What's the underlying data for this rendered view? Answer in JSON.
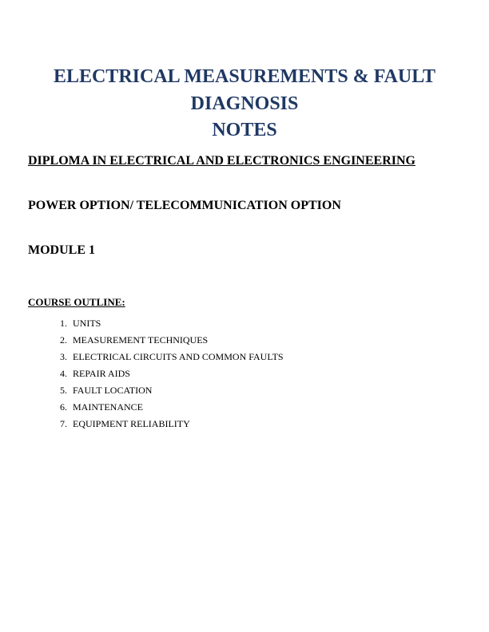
{
  "title_line1": "ELECTRICAL MEASUREMENTS & FAULT DIAGNOSIS",
  "title_line2": "NOTES",
  "subtitle": "DIPLOMA IN ELECTRICAL AND ELECTRONICS ENGINEERING",
  "option": "POWER OPTION/ TELECOMMUNICATION OPTION",
  "module": "MODULE 1",
  "outline_heading": "COURSE OUTLINE:",
  "outline_items": [
    "UNITS",
    "MEASUREMENT TECHNIQUES",
    "ELECTRICAL CIRCUITS AND COMMON FAULTS",
    "REPAIR AIDS",
    "FAULT LOCATION",
    "MAINTENANCE",
    "EQUIPMENT RELIABILITY"
  ],
  "colors": {
    "title_color": "#1f3864",
    "body_text": "#000000",
    "background": "#ffffff"
  },
  "fonts": {
    "title_size": 24,
    "subtitle_size": 16,
    "outline_heading_size": 13,
    "list_size": 12
  }
}
